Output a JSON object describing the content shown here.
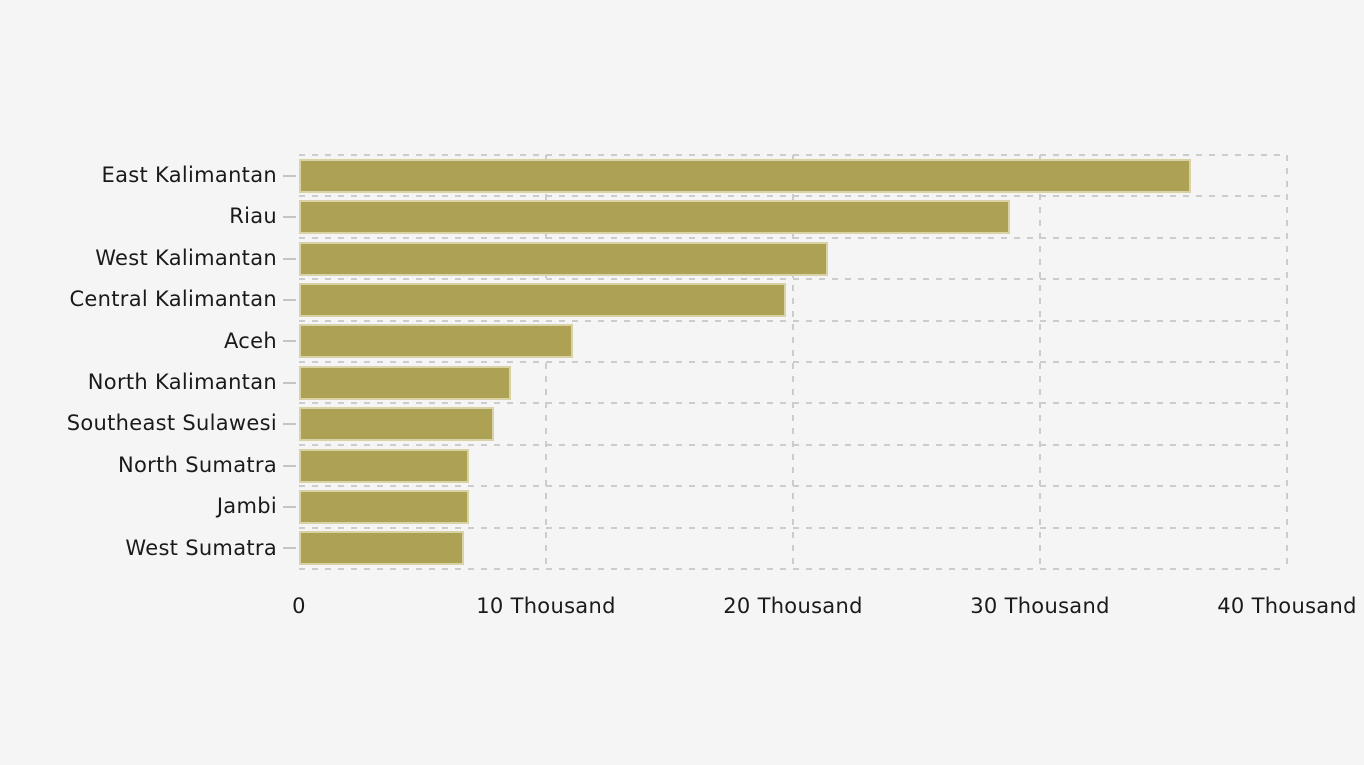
{
  "chart_data": {
    "type": "bar",
    "orientation": "horizontal",
    "title": "",
    "xlabel": "",
    "ylabel": "",
    "categories": [
      "East Kalimantan",
      "Riau",
      "West Kalimantan",
      "Central Kalimantan",
      "Aceh",
      "North Kalimantan",
      "Southeast Sulawesi",
      "North Sumatra",
      "Jambi",
      "West Sumatra"
    ],
    "values": [
      36100,
      28800,
      21400,
      19700,
      11100,
      8600,
      7900,
      6900,
      6900,
      6700
    ],
    "x_tick_labels": [
      "0",
      "10 Thousand",
      "20 Thousand",
      "30 Thousand",
      "40 Thousand"
    ],
    "x_tick_values": [
      0,
      10000,
      20000,
      30000,
      40000
    ],
    "xlim": [
      0,
      40000
    ],
    "grid": "dashed",
    "legend": "none",
    "colors": {
      "bar_fill": "#ADA254",
      "bar_border": "#D8D2A6",
      "background": "#F5F5F5",
      "gridline": "#CCCCCC",
      "tick": "#C5C5C5",
      "text": "#1A1A1A"
    }
  }
}
